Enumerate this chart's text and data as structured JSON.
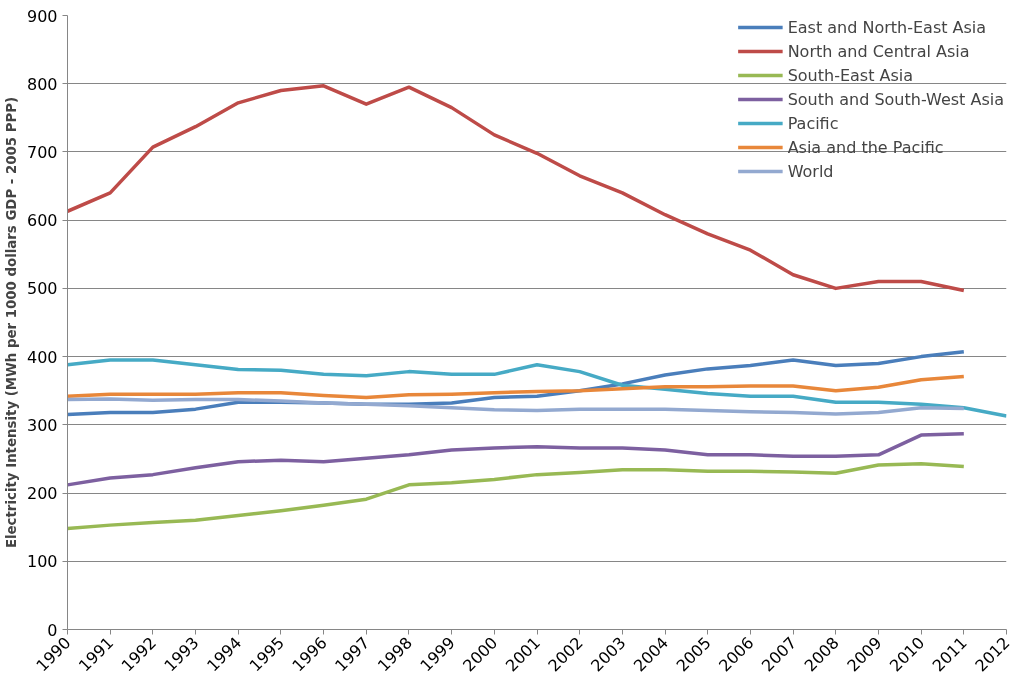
{
  "chart_data": {
    "type": "line",
    "ylabel": "Electricity Intensity (MWh per 1000 dollars GDP - 2005 PPP)",
    "categories": [
      "1990",
      "1991",
      "1992",
      "1993",
      "1994",
      "1995",
      "1996",
      "1997",
      "1998",
      "1999",
      "2000",
      "2001",
      "2002",
      "2003",
      "2004",
      "2005",
      "2006",
      "2007",
      "2008",
      "2009",
      "2010",
      "2011",
      "2012"
    ],
    "ylim": [
      0,
      900
    ],
    "yticks": [
      0,
      100,
      200,
      300,
      400,
      500,
      600,
      700,
      800,
      900
    ],
    "grid": "y",
    "legend": "top right",
    "line_style": "solid",
    "series": [
      {
        "name": "East and North-East Asia",
        "color": "#4a7ebb",
        "values": [
          315,
          318,
          318,
          323,
          333,
          333,
          332,
          330,
          330,
          332,
          340,
          342,
          350,
          360,
          373,
          382,
          387,
          395,
          387,
          390,
          400,
          407,
          null
        ]
      },
      {
        "name": "North and Central Asia",
        "color": "#be4b48",
        "values": [
          613,
          640,
          707,
          737,
          772,
          790,
          797,
          770,
          795,
          765,
          725,
          698,
          665,
          640,
          608,
          580,
          556,
          520,
          500,
          510,
          510,
          497,
          null
        ]
      },
      {
        "name": "South-East Asia",
        "color": "#98b954",
        "values": [
          148,
          153,
          157,
          160,
          167,
          174,
          182,
          191,
          212,
          215,
          220,
          227,
          230,
          234,
          234,
          232,
          232,
          231,
          229,
          241,
          243,
          239,
          null
        ]
      },
      {
        "name": "South and South-West Asia",
        "color": "#7d60a0",
        "values": [
          212,
          222,
          227,
          237,
          246,
          248,
          246,
          251,
          256,
          263,
          266,
          268,
          266,
          266,
          263,
          256,
          256,
          254,
          254,
          256,
          285,
          287,
          null
        ]
      },
      {
        "name": "Pacific",
        "color": "#46aac5",
        "values": [
          388,
          395,
          395,
          388,
          381,
          380,
          374,
          372,
          378,
          374,
          374,
          388,
          378,
          358,
          352,
          346,
          342,
          342,
          333,
          333,
          330,
          325,
          313
        ]
      },
      {
        "name": "Asia and the Pacific",
        "color": "#e8873a",
        "values": [
          342,
          345,
          345,
          345,
          347,
          347,
          343,
          340,
          344,
          345,
          347,
          349,
          350,
          353,
          356,
          356,
          357,
          357,
          350,
          355,
          366,
          371,
          null
        ]
      },
      {
        "name": "World",
        "color": "#93a9d0",
        "values": [
          337,
          338,
          336,
          337,
          337,
          335,
          332,
          330,
          328,
          325,
          322,
          321,
          323,
          323,
          323,
          321,
          319,
          318,
          316,
          318,
          325,
          324,
          null
        ]
      }
    ]
  }
}
